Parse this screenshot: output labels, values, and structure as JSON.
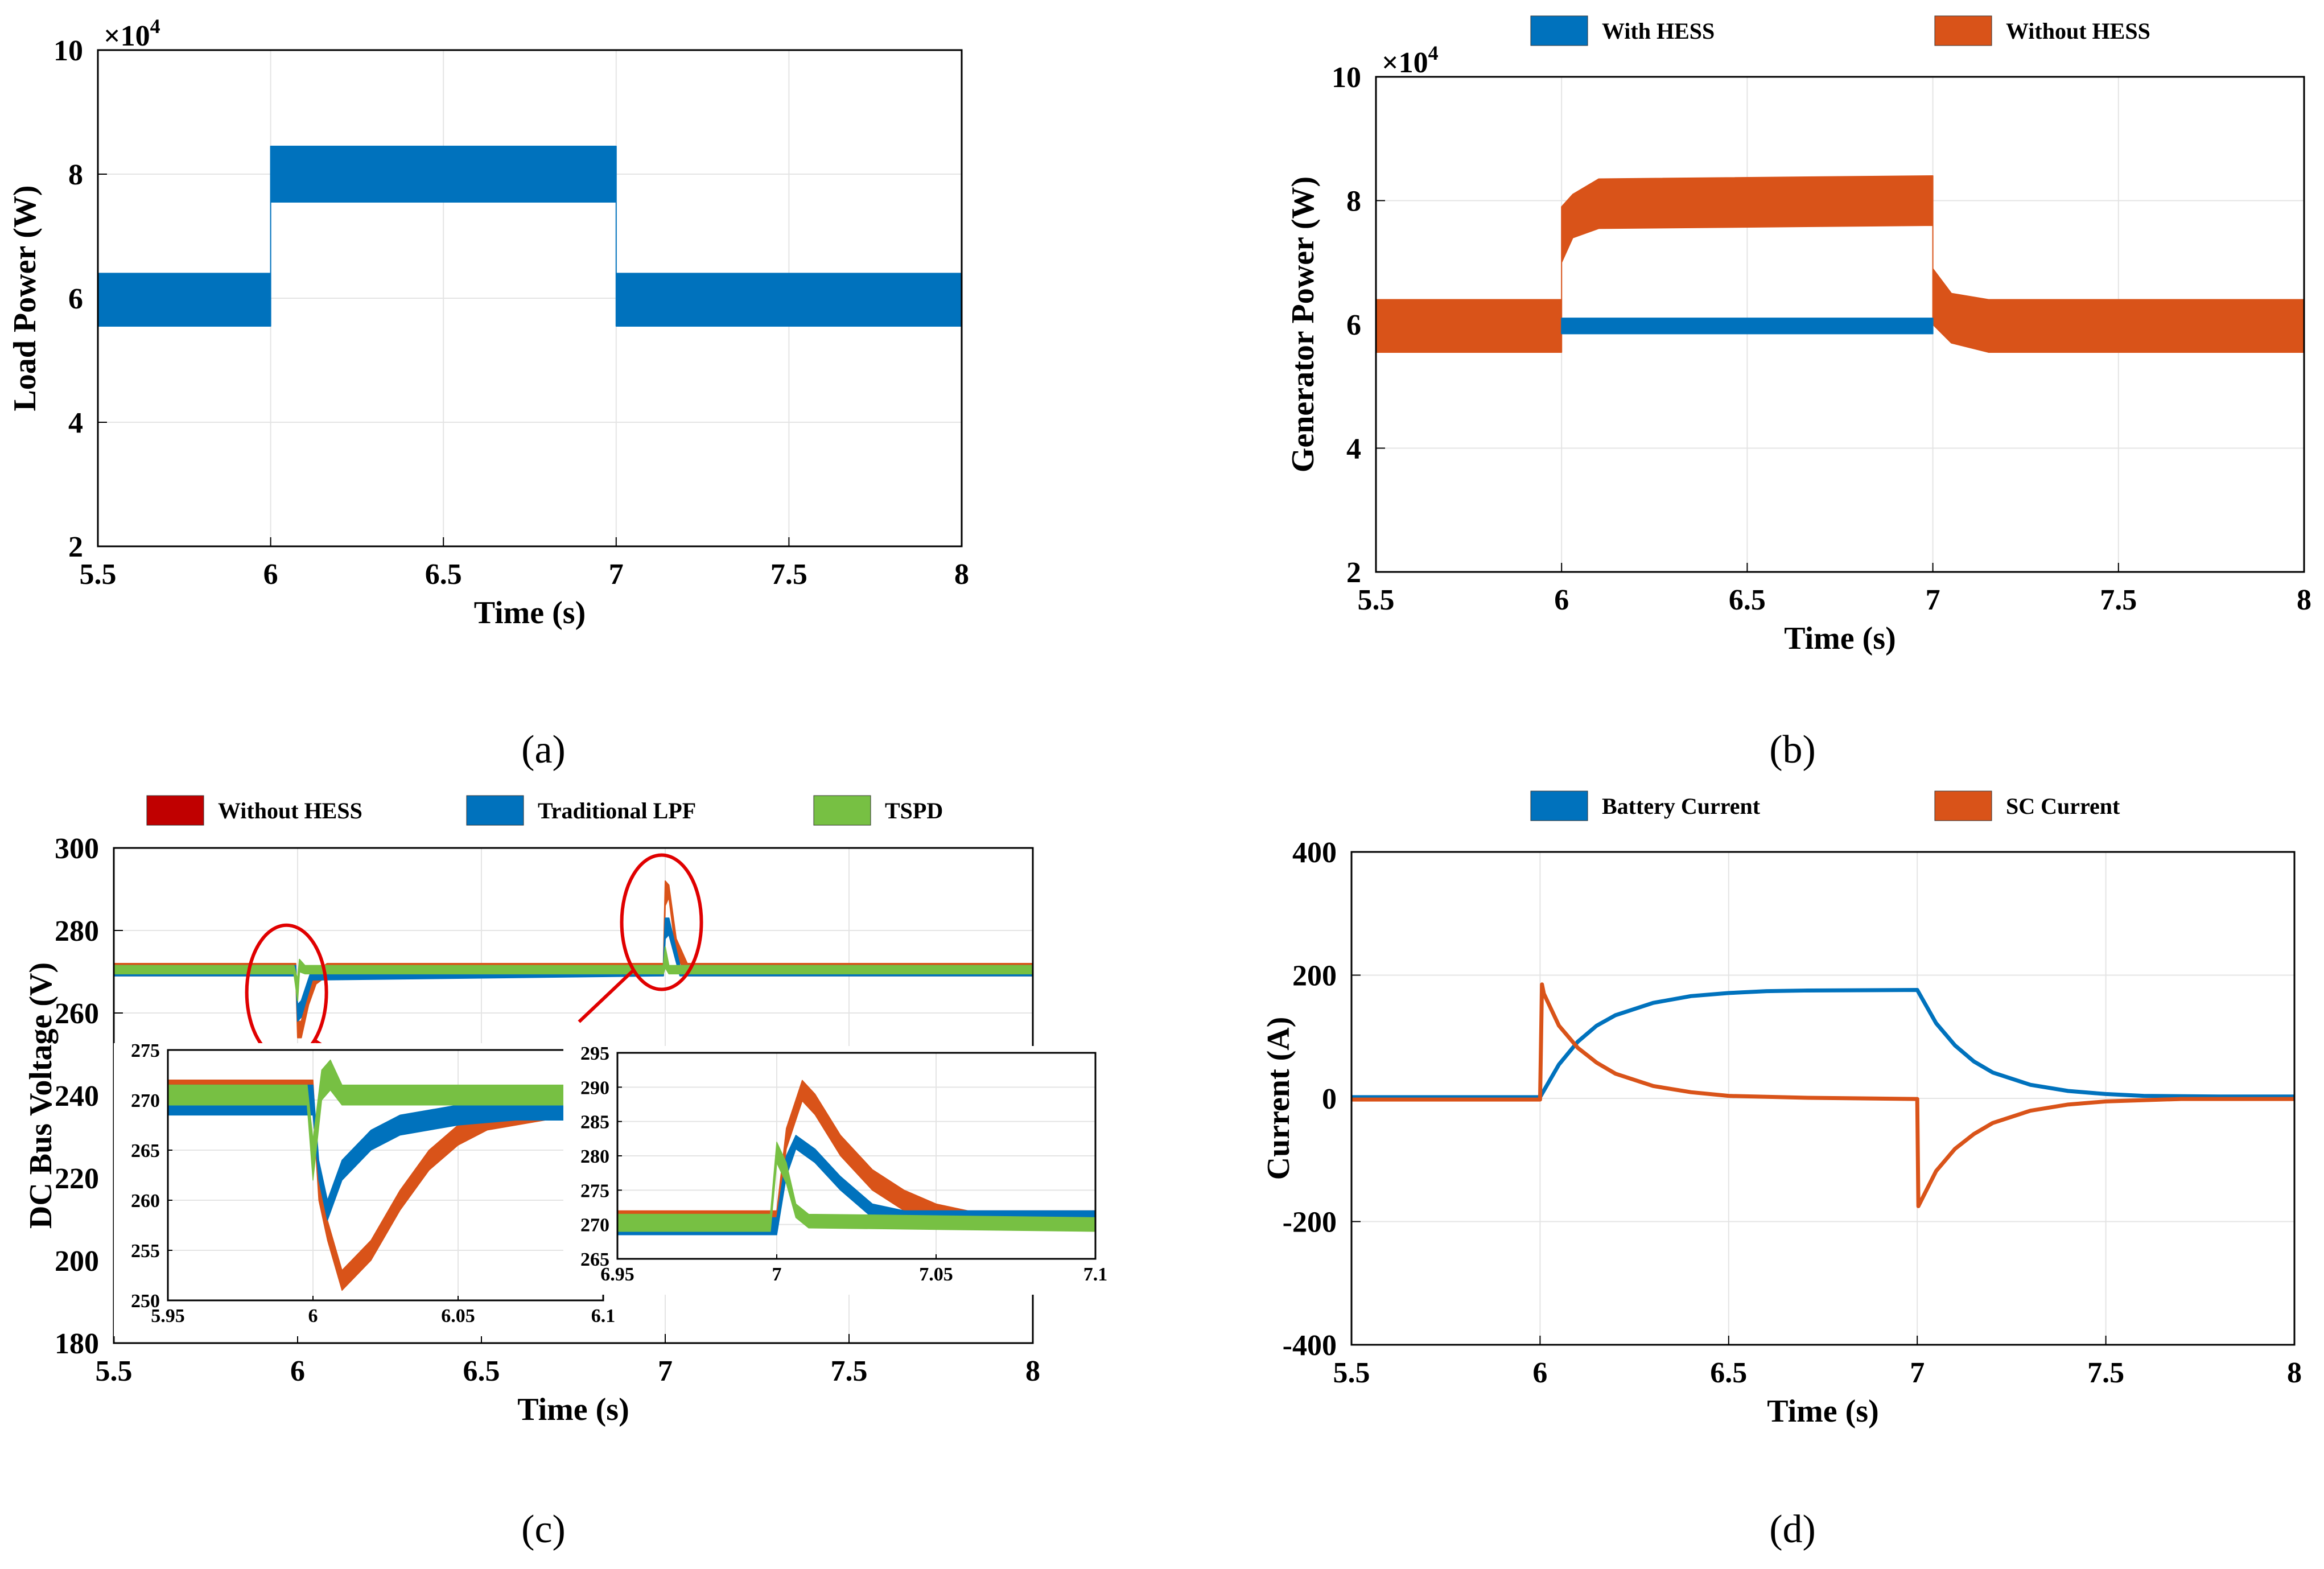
{
  "colors": {
    "blue": "#0072BD",
    "orange": "#D95319",
    "red": "#C00000",
    "green": "#77C043",
    "zoom_marker": "#E00000"
  },
  "chart_data": [
    {
      "id": "a",
      "type": "line",
      "panel_label": "(a)",
      "xlabel": "Time (s)",
      "ylabel": "Load Power (W)",
      "xlim": [
        5.5,
        8
      ],
      "ylim": [
        2,
        10
      ],
      "exponent": "×10",
      "exponent_power": "4",
      "xticks": [
        "5.5",
        "6",
        "6.5",
        "7",
        "7.5",
        "8"
      ],
      "yticks": [
        "2",
        "4",
        "6",
        "8",
        "10"
      ],
      "legend": [],
      "series": [
        {
          "name": "Load Power",
          "color": "#0072BD",
          "kind": "band",
          "points": [
            [
              5.5,
              5.55,
              6.4
            ],
            [
              6.0,
              5.55,
              6.4
            ],
            [
              6.0,
              7.55,
              8.45
            ],
            [
              7.0,
              7.55,
              8.45
            ],
            [
              7.0,
              5.55,
              6.4
            ],
            [
              8.0,
              5.55,
              6.4
            ]
          ]
        }
      ]
    },
    {
      "id": "b",
      "type": "line",
      "panel_label": "(b)",
      "xlabel": "Time (s)",
      "ylabel": "Generator Power (W)",
      "xlim": [
        5.5,
        8
      ],
      "ylim": [
        2,
        10
      ],
      "exponent": "×10",
      "exponent_power": "4",
      "xticks": [
        "5.5",
        "6",
        "6.5",
        "7",
        "7.5",
        "8"
      ],
      "yticks": [
        "2",
        "4",
        "6",
        "8",
        "10"
      ],
      "legend": [
        {
          "label": "With HESS",
          "color": "#0072BD"
        },
        {
          "label": "Without HESS",
          "color": "#D95319"
        }
      ],
      "series": [
        {
          "name": "Without HESS",
          "color": "#D95319",
          "kind": "band",
          "points": [
            [
              5.5,
              5.55,
              6.4
            ],
            [
              6.0,
              5.55,
              6.4
            ],
            [
              6.0,
              7.0,
              7.9
            ],
            [
              6.03,
              7.4,
              8.1
            ],
            [
              6.1,
              7.55,
              8.35
            ],
            [
              7.0,
              7.6,
              8.4
            ],
            [
              7.0,
              6.0,
              6.9
            ],
            [
              7.05,
              5.7,
              6.5
            ],
            [
              7.15,
              5.55,
              6.4
            ],
            [
              8.0,
              5.55,
              6.4
            ]
          ]
        },
        {
          "name": "With HESS",
          "color": "#0072BD",
          "kind": "band",
          "points": [
            [
              6.0,
              5.85,
              6.1
            ],
            [
              7.0,
              5.85,
              6.1
            ]
          ]
        }
      ]
    },
    {
      "id": "c",
      "type": "line",
      "panel_label": "(c)",
      "xlabel": "Time (s)",
      "ylabel": "DC Bus Voltage (V)",
      "xlim": [
        5.5,
        8
      ],
      "ylim": [
        180,
        300
      ],
      "xticks": [
        "5.5",
        "6",
        "6.5",
        "7",
        "7.5",
        "8"
      ],
      "yticks": [
        "180",
        "200",
        "220",
        "240",
        "260",
        "280",
        "300"
      ],
      "legend": [
        {
          "label": "Without HESS",
          "color": "#C00000"
        },
        {
          "label": "Traditional LPF",
          "color": "#0072BD"
        },
        {
          "label": "TSPD",
          "color": "#77C043"
        }
      ],
      "series": [
        {
          "name": "Without HESS",
          "color": "#D95319",
          "kind": "band",
          "points": [
            [
              5.5,
              269,
              272
            ],
            [
              5.995,
              269,
              272
            ],
            [
              6.0,
              254,
              258
            ],
            [
              6.01,
              254,
              258
            ],
            [
              6.03,
              262,
              266
            ],
            [
              6.05,
              267,
              270
            ],
            [
              6.08,
              269,
              272
            ],
            [
              6.995,
              269,
              272
            ],
            [
              7.0,
              286,
              292
            ],
            [
              7.01,
              288,
              291
            ],
            [
              7.03,
              274,
              278
            ],
            [
              7.06,
              269,
              272
            ],
            [
              8.0,
              269,
              272
            ]
          ]
        },
        {
          "name": "Traditional LPF",
          "color": "#0072BD",
          "kind": "band",
          "points": [
            [
              5.5,
              269,
              271.5
            ],
            [
              5.995,
              269,
              271.5
            ],
            [
              6.0,
              258,
              262
            ],
            [
              6.01,
              259,
              263
            ],
            [
              6.04,
              268,
              271
            ],
            [
              6.995,
              269,
              271.5
            ],
            [
              7.0,
              278,
              283
            ],
            [
              7.01,
              279,
              283
            ],
            [
              7.04,
              269,
              271.5
            ],
            [
              8.0,
              269,
              271.5
            ]
          ]
        },
        {
          "name": "TSPD",
          "color": "#77C043",
          "kind": "band",
          "points": [
            [
              5.5,
              269.5,
              271.5
            ],
            [
              5.99,
              269.5,
              271.5
            ],
            [
              6.0,
              263,
              268
            ],
            [
              6.005,
              270,
              273
            ],
            [
              6.02,
              269.5,
              271.5
            ],
            [
              6.995,
              269.5,
              271.5
            ],
            [
              7.0,
              271,
              276
            ],
            [
              7.01,
              269.5,
              271.5
            ],
            [
              8.0,
              269.5,
              271.5
            ]
          ]
        }
      ],
      "insets": [
        {
          "id": "c1",
          "xlim": [
            5.95,
            6.1
          ],
          "ylim": [
            250,
            275
          ],
          "xticks": [
            "5.95",
            "6",
            "6.05",
            "6.1"
          ],
          "yticks": [
            "250",
            "255",
            "260",
            "265",
            "270",
            "275"
          ],
          "series": [
            {
              "name": "Without HESS",
              "color": "#D95319",
              "kind": "band",
              "points": [
                [
                  5.95,
                  269,
                  272
                ],
                [
                  6.0,
                  269,
                  272
                ],
                [
                  6.002,
                  260,
                  262
                ],
                [
                  6.005,
                  256,
                  258
                ],
                [
                  6.01,
                  251,
                  253
                ],
                [
                  6.02,
                  254,
                  256
                ],
                [
                  6.03,
                  259,
                  261
                ],
                [
                  6.04,
                  263,
                  265
                ],
                [
                  6.05,
                  265.5,
                  267.5
                ],
                [
                  6.06,
                  267,
                  269
                ],
                [
                  6.08,
                  268,
                  270.5
                ],
                [
                  6.1,
                  268,
                  271
                ]
              ]
            },
            {
              "name": "Traditional LPF",
              "color": "#0072BD",
              "kind": "band",
              "points": [
                [
                  5.95,
                  268.5,
                  271.5
                ],
                [
                  6.0,
                  268.5,
                  271.5
                ],
                [
                  6.002,
                  262,
                  264
                ],
                [
                  6.005,
                  258,
                  260
                ],
                [
                  6.01,
                  262,
                  264
                ],
                [
                  6.02,
                  265,
                  267
                ],
                [
                  6.03,
                  266.5,
                  268.5
                ],
                [
                  6.05,
                  267.5,
                  269.5
                ],
                [
                  6.07,
                  268,
                  270
                ],
                [
                  6.1,
                  268,
                  270
                ]
              ]
            },
            {
              "name": "TSPD",
              "color": "#77C043",
              "kind": "band",
              "points": [
                [
                  5.95,
                  269.5,
                  271.5
                ],
                [
                  5.998,
                  269.5,
                  271.5
                ],
                [
                  6.0,
                  262,
                  266
                ],
                [
                  6.003,
                  270,
                  273
                ],
                [
                  6.006,
                  271,
                  274
                ],
                [
                  6.01,
                  269.5,
                  271.5
                ],
                [
                  6.1,
                  269.5,
                  271.5
                ]
              ]
            }
          ]
        },
        {
          "id": "c2",
          "xlim": [
            6.95,
            7.1
          ],
          "ylim": [
            265,
            295
          ],
          "xticks": [
            "6.95",
            "7",
            "7.05",
            "7.1"
          ],
          "yticks": [
            "265",
            "270",
            "275",
            "280",
            "285",
            "290",
            "295"
          ],
          "series": [
            {
              "name": "Without HESS",
              "color": "#D95319",
              "kind": "band",
              "points": [
                [
                  6.95,
                  269,
                  272
                ],
                [
                  7.0,
                  269,
                  272
                ],
                [
                  7.003,
                  281,
                  284
                ],
                [
                  7.008,
                  288,
                  291
                ],
                [
                  7.012,
                  286,
                  289
                ],
                [
                  7.02,
                  280,
                  283
                ],
                [
                  7.03,
                  275,
                  278
                ],
                [
                  7.04,
                  272,
                  275
                ],
                [
                  7.05,
                  270.5,
                  273
                ],
                [
                  7.06,
                  270,
                  272
                ],
                [
                  7.1,
                  270,
                  272
                ]
              ]
            },
            {
              "name": "Traditional LPF",
              "color": "#0072BD",
              "kind": "band",
              "points": [
                [
                  6.95,
                  268.5,
                  271
                ],
                [
                  7.0,
                  268.5,
                  271
                ],
                [
                  7.003,
                  277,
                  280
                ],
                [
                  7.006,
                  281,
                  283
                ],
                [
                  7.012,
                  279,
                  281
                ],
                [
                  7.02,
                  275,
                  277
                ],
                [
                  7.03,
                  271,
                  273
                ],
                [
                  7.04,
                  270,
                  272
                ],
                [
                  7.1,
                  270,
                  272
                ]
              ]
            },
            {
              "name": "TSPD",
              "color": "#77C043",
              "kind": "band",
              "points": [
                [
                  6.95,
                  269,
                  271.5
                ],
                [
                  6.998,
                  269,
                  271.5
                ],
                [
                  7.0,
                  279,
                  282
                ],
                [
                  7.003,
                  276,
                  279
                ],
                [
                  7.006,
                  271,
                  273
                ],
                [
                  7.01,
                  269.5,
                  271.5
                ],
                [
                  7.1,
                  269,
                  271
                ]
              ]
            }
          ]
        }
      ]
    },
    {
      "id": "d",
      "type": "line",
      "panel_label": "(d)",
      "xlabel": "Time (s)",
      "ylabel": "Current (A)",
      "xlim": [
        5.5,
        8
      ],
      "ylim": [
        -400,
        400
      ],
      "xticks": [
        "5.5",
        "6",
        "6.5",
        "7",
        "7.5",
        "8"
      ],
      "yticks": [
        "-400",
        "-200",
        "0",
        "200",
        "400"
      ],
      "legend": [
        {
          "label": "Battery Current",
          "color": "#0072BD"
        },
        {
          "label": "SC Current",
          "color": "#D95319"
        }
      ],
      "series": [
        {
          "name": "Battery Current",
          "color": "#0072BD",
          "kind": "line",
          "points": [
            [
              5.5,
              2
            ],
            [
              6.0,
              2
            ],
            [
              6.05,
              55
            ],
            [
              6.1,
              92
            ],
            [
              6.15,
              118
            ],
            [
              6.2,
              135
            ],
            [
              6.3,
              155
            ],
            [
              6.4,
              166
            ],
            [
              6.5,
              171
            ],
            [
              6.6,
              174
            ],
            [
              6.7,
              175
            ],
            [
              7.0,
              176
            ],
            [
              7.05,
              122
            ],
            [
              7.1,
              86
            ],
            [
              7.15,
              60
            ],
            [
              7.2,
              42
            ],
            [
              7.3,
              22
            ],
            [
              7.4,
              12
            ],
            [
              7.5,
              7
            ],
            [
              7.6,
              4
            ],
            [
              7.8,
              3
            ],
            [
              8.0,
              3
            ]
          ]
        },
        {
          "name": "SC Current",
          "color": "#D95319",
          "kind": "line",
          "points": [
            [
              5.5,
              -2
            ],
            [
              6.0,
              -2
            ],
            [
              6.005,
              185
            ],
            [
              6.01,
              170
            ],
            [
              6.05,
              118
            ],
            [
              6.1,
              82
            ],
            [
              6.15,
              58
            ],
            [
              6.2,
              40
            ],
            [
              6.3,
              20
            ],
            [
              6.4,
              10
            ],
            [
              6.5,
              4
            ],
            [
              6.7,
              1
            ],
            [
              7.0,
              -1
            ],
            [
              7.003,
              -175
            ],
            [
              7.05,
              -118
            ],
            [
              7.1,
              -82
            ],
            [
              7.15,
              -58
            ],
            [
              7.2,
              -40
            ],
            [
              7.3,
              -20
            ],
            [
              7.4,
              -10
            ],
            [
              7.5,
              -5
            ],
            [
              7.7,
              -1
            ],
            [
              8.0,
              -1
            ]
          ]
        }
      ]
    }
  ]
}
